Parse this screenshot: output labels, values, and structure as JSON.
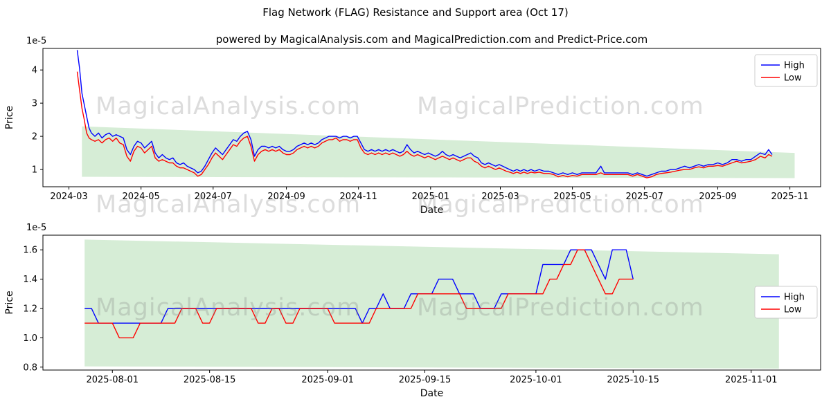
{
  "figure": {
    "title": "Flag Network (FLAG) Resistance and Support area (Oct 17)",
    "subtitle": "powered by MagicalAnalysis.com and MagicalPrediction.com and Predict-Price.com"
  },
  "watermarks": {
    "left": "MagicalAnalysis.com",
    "right": "MagicalPrediction.com"
  },
  "colors": {
    "high": "#0000ff",
    "low": "#ff0000",
    "band": "rgba(0,140,0,0.16)"
  },
  "chart_data": [
    {
      "type": "line",
      "xlabel": "Date",
      "ylabel": "Price",
      "y_offset_label": "1e-5",
      "y_unit": "1e-5",
      "xlim": [
        "2024-02-08",
        "2025-11-27"
      ],
      "ylim": [
        0.48,
        4.65
      ],
      "legend_loc": "upper right",
      "x_ticks": [
        {
          "date": "2024-03-01",
          "label": "2024-03"
        },
        {
          "date": "2024-05-01",
          "label": "2024-05"
        },
        {
          "date": "2024-07-01",
          "label": "2024-07"
        },
        {
          "date": "2024-09-01",
          "label": "2024-09"
        },
        {
          "date": "2024-11-01",
          "label": "2024-11"
        },
        {
          "date": "2025-01-01",
          "label": "2025-01"
        },
        {
          "date": "2025-03-01",
          "label": "2025-03"
        },
        {
          "date": "2025-05-01",
          "label": "2025-05"
        },
        {
          "date": "2025-07-01",
          "label": "2025-07"
        },
        {
          "date": "2025-09-01",
          "label": "2025-09"
        },
        {
          "date": "2025-11-01",
          "label": "2025-11"
        }
      ],
      "y_ticks": [
        {
          "value": 1,
          "label": "1"
        },
        {
          "value": 2,
          "label": "2"
        },
        {
          "value": 3,
          "label": "3"
        },
        {
          "value": 4,
          "label": "4"
        }
      ],
      "band": {
        "x": [
          "2024-03-12",
          "2025-11-05"
        ],
        "top": [
          2.3,
          1.5
        ],
        "bottom": [
          0.78,
          0.74
        ]
      },
      "dates": [
        "2024-03-08",
        "2024-03-10",
        "2024-03-12",
        "2024-03-14",
        "2024-03-16",
        "2024-03-18",
        "2024-03-20",
        "2024-03-23",
        "2024-03-26",
        "2024-03-29",
        "2024-04-01",
        "2024-04-04",
        "2024-04-07",
        "2024-04-10",
        "2024-04-13",
        "2024-04-16",
        "2024-04-19",
        "2024-04-22",
        "2024-04-25",
        "2024-04-28",
        "2024-05-01",
        "2024-05-04",
        "2024-05-07",
        "2024-05-10",
        "2024-05-13",
        "2024-05-16",
        "2024-05-19",
        "2024-05-22",
        "2024-05-25",
        "2024-05-28",
        "2024-05-31",
        "2024-06-03",
        "2024-06-06",
        "2024-06-09",
        "2024-06-12",
        "2024-06-15",
        "2024-06-18",
        "2024-06-21",
        "2024-06-24",
        "2024-06-27",
        "2024-06-30",
        "2024-07-03",
        "2024-07-06",
        "2024-07-09",
        "2024-07-12",
        "2024-07-15",
        "2024-07-18",
        "2024-07-21",
        "2024-07-24",
        "2024-07-27",
        "2024-07-30",
        "2024-08-02",
        "2024-08-05",
        "2024-08-08",
        "2024-08-11",
        "2024-08-14",
        "2024-08-17",
        "2024-08-20",
        "2024-08-23",
        "2024-08-26",
        "2024-08-29",
        "2024-09-01",
        "2024-09-04",
        "2024-09-07",
        "2024-09-10",
        "2024-09-13",
        "2024-09-16",
        "2024-09-19",
        "2024-09-22",
        "2024-09-25",
        "2024-09-28",
        "2024-10-01",
        "2024-10-04",
        "2024-10-07",
        "2024-10-10",
        "2024-10-13",
        "2024-10-16",
        "2024-10-19",
        "2024-10-22",
        "2024-10-25",
        "2024-10-28",
        "2024-10-31",
        "2024-11-03",
        "2024-11-06",
        "2024-11-09",
        "2024-11-12",
        "2024-11-15",
        "2024-11-18",
        "2024-11-21",
        "2024-11-24",
        "2024-11-27",
        "2024-11-30",
        "2024-12-03",
        "2024-12-06",
        "2024-12-09",
        "2024-12-12",
        "2024-12-15",
        "2024-12-18",
        "2024-12-21",
        "2024-12-24",
        "2024-12-27",
        "2024-12-30",
        "2025-01-02",
        "2025-01-05",
        "2025-01-08",
        "2025-01-11",
        "2025-01-14",
        "2025-01-17",
        "2025-01-20",
        "2025-01-23",
        "2025-01-26",
        "2025-01-29",
        "2025-02-01",
        "2025-02-04",
        "2025-02-07",
        "2025-02-10",
        "2025-02-13",
        "2025-02-16",
        "2025-02-19",
        "2025-02-22",
        "2025-02-25",
        "2025-02-28",
        "2025-03-03",
        "2025-03-06",
        "2025-03-09",
        "2025-03-12",
        "2025-03-15",
        "2025-03-18",
        "2025-03-21",
        "2025-03-24",
        "2025-03-27",
        "2025-03-30",
        "2025-04-03",
        "2025-04-07",
        "2025-04-11",
        "2025-04-15",
        "2025-04-19",
        "2025-04-23",
        "2025-04-27",
        "2025-05-01",
        "2025-05-05",
        "2025-05-09",
        "2025-05-13",
        "2025-05-17",
        "2025-05-21",
        "2025-05-25",
        "2025-05-28",
        "2025-06-01",
        "2025-06-05",
        "2025-06-09",
        "2025-06-13",
        "2025-06-17",
        "2025-06-21",
        "2025-06-25",
        "2025-06-29",
        "2025-07-03",
        "2025-07-07",
        "2025-07-11",
        "2025-07-15",
        "2025-07-19",
        "2025-07-23",
        "2025-07-27",
        "2025-07-31",
        "2025-08-04",
        "2025-08-08",
        "2025-08-12",
        "2025-08-16",
        "2025-08-20",
        "2025-08-24",
        "2025-08-28",
        "2025-09-01",
        "2025-09-05",
        "2025-09-09",
        "2025-09-13",
        "2025-09-17",
        "2025-09-21",
        "2025-09-25",
        "2025-09-29",
        "2025-10-03",
        "2025-10-07",
        "2025-10-11",
        "2025-10-14",
        "2025-10-17"
      ],
      "series": [
        {
          "name": "High",
          "color_key": "high",
          "values": [
            4.6,
            4.05,
            3.3,
            2.95,
            2.6,
            2.25,
            2.1,
            2.0,
            2.1,
            1.95,
            2.05,
            2.1,
            2.0,
            2.05,
            2.0,
            1.95,
            1.6,
            1.45,
            1.7,
            1.85,
            1.8,
            1.65,
            1.75,
            1.85,
            1.5,
            1.35,
            1.45,
            1.35,
            1.3,
            1.35,
            1.2,
            1.15,
            1.2,
            1.1,
            1.05,
            1.0,
            0.9,
            0.95,
            1.1,
            1.3,
            1.5,
            1.65,
            1.55,
            1.45,
            1.6,
            1.75,
            1.9,
            1.85,
            2.0,
            2.1,
            2.15,
            1.9,
            1.4,
            1.6,
            1.7,
            1.7,
            1.65,
            1.7,
            1.65,
            1.7,
            1.6,
            1.55,
            1.55,
            1.6,
            1.7,
            1.75,
            1.8,
            1.75,
            1.8,
            1.75,
            1.8,
            1.9,
            1.95,
            2.0,
            2.0,
            2.0,
            1.95,
            2.0,
            2.0,
            1.95,
            2.0,
            2.0,
            1.8,
            1.6,
            1.55,
            1.6,
            1.55,
            1.6,
            1.55,
            1.6,
            1.55,
            1.6,
            1.55,
            1.5,
            1.55,
            1.75,
            1.6,
            1.5,
            1.55,
            1.5,
            1.45,
            1.5,
            1.45,
            1.4,
            1.45,
            1.55,
            1.45,
            1.4,
            1.45,
            1.4,
            1.35,
            1.4,
            1.45,
            1.5,
            1.4,
            1.35,
            1.2,
            1.15,
            1.2,
            1.15,
            1.1,
            1.15,
            1.1,
            1.05,
            1.0,
            0.95,
            1.0,
            0.95,
            1.0,
            0.95,
            1.0,
            0.95,
            1.0,
            0.95,
            0.95,
            0.9,
            0.85,
            0.9,
            0.85,
            0.9,
            0.85,
            0.9,
            0.9,
            0.9,
            0.9,
            1.1,
            0.9,
            0.9,
            0.9,
            0.9,
            0.9,
            0.9,
            0.85,
            0.9,
            0.85,
            0.8,
            0.85,
            0.9,
            0.95,
            0.95,
            1.0,
            1.0,
            1.05,
            1.1,
            1.05,
            1.1,
            1.15,
            1.1,
            1.15,
            1.15,
            1.2,
            1.15,
            1.2,
            1.3,
            1.3,
            1.25,
            1.3,
            1.3,
            1.4,
            1.5,
            1.45,
            1.6,
            1.45
          ]
        },
        {
          "name": "Low",
          "color_key": "low",
          "values": [
            3.95,
            3.4,
            2.85,
            2.5,
            2.1,
            1.95,
            1.9,
            1.85,
            1.9,
            1.8,
            1.9,
            1.95,
            1.85,
            1.95,
            1.8,
            1.75,
            1.4,
            1.25,
            1.55,
            1.7,
            1.65,
            1.5,
            1.6,
            1.7,
            1.35,
            1.25,
            1.3,
            1.25,
            1.2,
            1.2,
            1.1,
            1.05,
            1.05,
            1.0,
            0.95,
            0.9,
            0.8,
            0.85,
            1.0,
            1.15,
            1.35,
            1.5,
            1.4,
            1.3,
            1.45,
            1.6,
            1.75,
            1.7,
            1.85,
            1.95,
            2.0,
            1.7,
            1.25,
            1.45,
            1.55,
            1.6,
            1.55,
            1.6,
            1.55,
            1.6,
            1.5,
            1.45,
            1.45,
            1.5,
            1.6,
            1.65,
            1.7,
            1.65,
            1.7,
            1.65,
            1.7,
            1.8,
            1.85,
            1.9,
            1.9,
            1.95,
            1.85,
            1.9,
            1.9,
            1.85,
            1.9,
            1.9,
            1.65,
            1.5,
            1.45,
            1.5,
            1.45,
            1.5,
            1.45,
            1.5,
            1.45,
            1.5,
            1.45,
            1.4,
            1.45,
            1.55,
            1.45,
            1.4,
            1.45,
            1.4,
            1.35,
            1.4,
            1.35,
            1.3,
            1.35,
            1.4,
            1.35,
            1.3,
            1.35,
            1.3,
            1.25,
            1.3,
            1.35,
            1.35,
            1.25,
            1.2,
            1.1,
            1.05,
            1.1,
            1.05,
            1.0,
            1.05,
            1.0,
            0.95,
            0.92,
            0.88,
            0.92,
            0.88,
            0.92,
            0.88,
            0.92,
            0.9,
            0.92,
            0.88,
            0.88,
            0.85,
            0.78,
            0.82,
            0.78,
            0.82,
            0.8,
            0.85,
            0.85,
            0.85,
            0.85,
            0.9,
            0.85,
            0.85,
            0.85,
            0.85,
            0.85,
            0.85,
            0.8,
            0.85,
            0.8,
            0.75,
            0.78,
            0.85,
            0.88,
            0.9,
            0.92,
            0.95,
            0.98,
            1.0,
            1.0,
            1.05,
            1.08,
            1.05,
            1.1,
            1.1,
            1.12,
            1.1,
            1.15,
            1.2,
            1.25,
            1.2,
            1.22,
            1.25,
            1.3,
            1.4,
            1.35,
            1.45,
            1.4
          ]
        }
      ]
    },
    {
      "type": "line",
      "xlabel": "Date",
      "ylabel": "Price",
      "y_offset_label": "1e-5",
      "y_unit": "1e-5",
      "xlim": [
        "2025-07-22",
        "2025-11-11"
      ],
      "ylim": [
        0.78,
        1.7
      ],
      "legend_loc": "center right",
      "x_ticks": [
        {
          "date": "2025-08-01",
          "label": "2025-08-01"
        },
        {
          "date": "2025-08-15",
          "label": "2025-08-15"
        },
        {
          "date": "2025-09-01",
          "label": "2025-09-01"
        },
        {
          "date": "2025-09-15",
          "label": "2025-09-15"
        },
        {
          "date": "2025-10-01",
          "label": "2025-10-01"
        },
        {
          "date": "2025-10-15",
          "label": "2025-10-15"
        },
        {
          "date": "2025-11-01",
          "label": "2025-11-01"
        }
      ],
      "y_ticks": [
        {
          "value": 0.8,
          "label": "0.8"
        },
        {
          "value": 1.0,
          "label": "1.0"
        },
        {
          "value": 1.2,
          "label": "1.2"
        },
        {
          "value": 1.4,
          "label": "1.4"
        },
        {
          "value": 1.6,
          "label": "1.6"
        }
      ],
      "band": {
        "x": [
          "2025-07-28",
          "2025-11-05"
        ],
        "top": [
          1.67,
          1.57
        ],
        "bottom": [
          0.805,
          0.79
        ]
      },
      "dates": [
        "2025-07-28",
        "2025-07-29",
        "2025-07-30",
        "2025-07-31",
        "2025-08-01",
        "2025-08-02",
        "2025-08-03",
        "2025-08-04",
        "2025-08-05",
        "2025-08-06",
        "2025-08-07",
        "2025-08-08",
        "2025-08-09",
        "2025-08-10",
        "2025-08-11",
        "2025-08-12",
        "2025-08-13",
        "2025-08-14",
        "2025-08-15",
        "2025-08-16",
        "2025-08-17",
        "2025-08-18",
        "2025-08-19",
        "2025-08-20",
        "2025-08-21",
        "2025-08-22",
        "2025-08-23",
        "2025-08-24",
        "2025-08-25",
        "2025-08-26",
        "2025-08-27",
        "2025-08-28",
        "2025-08-29",
        "2025-08-30",
        "2025-08-31",
        "2025-09-01",
        "2025-09-02",
        "2025-09-03",
        "2025-09-04",
        "2025-09-05",
        "2025-09-06",
        "2025-09-07",
        "2025-09-08",
        "2025-09-09",
        "2025-09-10",
        "2025-09-11",
        "2025-09-12",
        "2025-09-13",
        "2025-09-14",
        "2025-09-15",
        "2025-09-16",
        "2025-09-17",
        "2025-09-18",
        "2025-09-19",
        "2025-09-20",
        "2025-09-21",
        "2025-09-22",
        "2025-09-23",
        "2025-09-24",
        "2025-09-25",
        "2025-09-26",
        "2025-09-27",
        "2025-09-28",
        "2025-09-29",
        "2025-09-30",
        "2025-10-01",
        "2025-10-02",
        "2025-10-03",
        "2025-10-04",
        "2025-10-05",
        "2025-10-06",
        "2025-10-07",
        "2025-10-08",
        "2025-10-09",
        "2025-10-10",
        "2025-10-11",
        "2025-10-12",
        "2025-10-13",
        "2025-10-14",
        "2025-10-15"
      ],
      "series": [
        {
          "name": "High",
          "color_key": "high",
          "values": [
            1.2,
            1.2,
            1.1,
            1.1,
            1.1,
            1.1,
            1.1,
            1.1,
            1.1,
            1.1,
            1.1,
            1.1,
            1.2,
            1.2,
            1.2,
            1.2,
            1.2,
            1.2,
            1.2,
            1.2,
            1.2,
            1.2,
            1.2,
            1.2,
            1.2,
            1.2,
            1.2,
            1.2,
            1.2,
            1.2,
            1.2,
            1.2,
            1.2,
            1.2,
            1.2,
            1.2,
            1.2,
            1.2,
            1.2,
            1.2,
            1.1,
            1.2,
            1.2,
            1.3,
            1.2,
            1.2,
            1.2,
            1.3,
            1.3,
            1.3,
            1.3,
            1.4,
            1.4,
            1.4,
            1.3,
            1.3,
            1.3,
            1.2,
            1.2,
            1.2,
            1.3,
            1.3,
            1.3,
            1.3,
            1.3,
            1.3,
            1.5,
            1.5,
            1.5,
            1.5,
            1.6,
            1.6,
            1.6,
            1.6,
            1.5,
            1.4,
            1.6,
            1.6,
            1.6,
            1.4
          ]
        },
        {
          "name": "Low",
          "color_key": "low",
          "values": [
            1.1,
            1.1,
            1.1,
            1.1,
            1.1,
            1.0,
            1.0,
            1.0,
            1.1,
            1.1,
            1.1,
            1.1,
            1.1,
            1.1,
            1.2,
            1.2,
            1.2,
            1.1,
            1.1,
            1.2,
            1.2,
            1.2,
            1.2,
            1.2,
            1.2,
            1.1,
            1.1,
            1.2,
            1.2,
            1.1,
            1.1,
            1.2,
            1.2,
            1.2,
            1.2,
            1.2,
            1.1,
            1.1,
            1.1,
            1.1,
            1.1,
            1.1,
            1.2,
            1.2,
            1.2,
            1.2,
            1.2,
            1.2,
            1.3,
            1.3,
            1.3,
            1.3,
            1.3,
            1.3,
            1.3,
            1.2,
            1.2,
            1.2,
            1.2,
            1.2,
            1.2,
            1.3,
            1.3,
            1.3,
            1.3,
            1.3,
            1.3,
            1.4,
            1.4,
            1.5,
            1.5,
            1.6,
            1.6,
            1.5,
            1.4,
            1.3,
            1.3,
            1.4,
            1.4,
            1.4
          ]
        }
      ]
    }
  ]
}
